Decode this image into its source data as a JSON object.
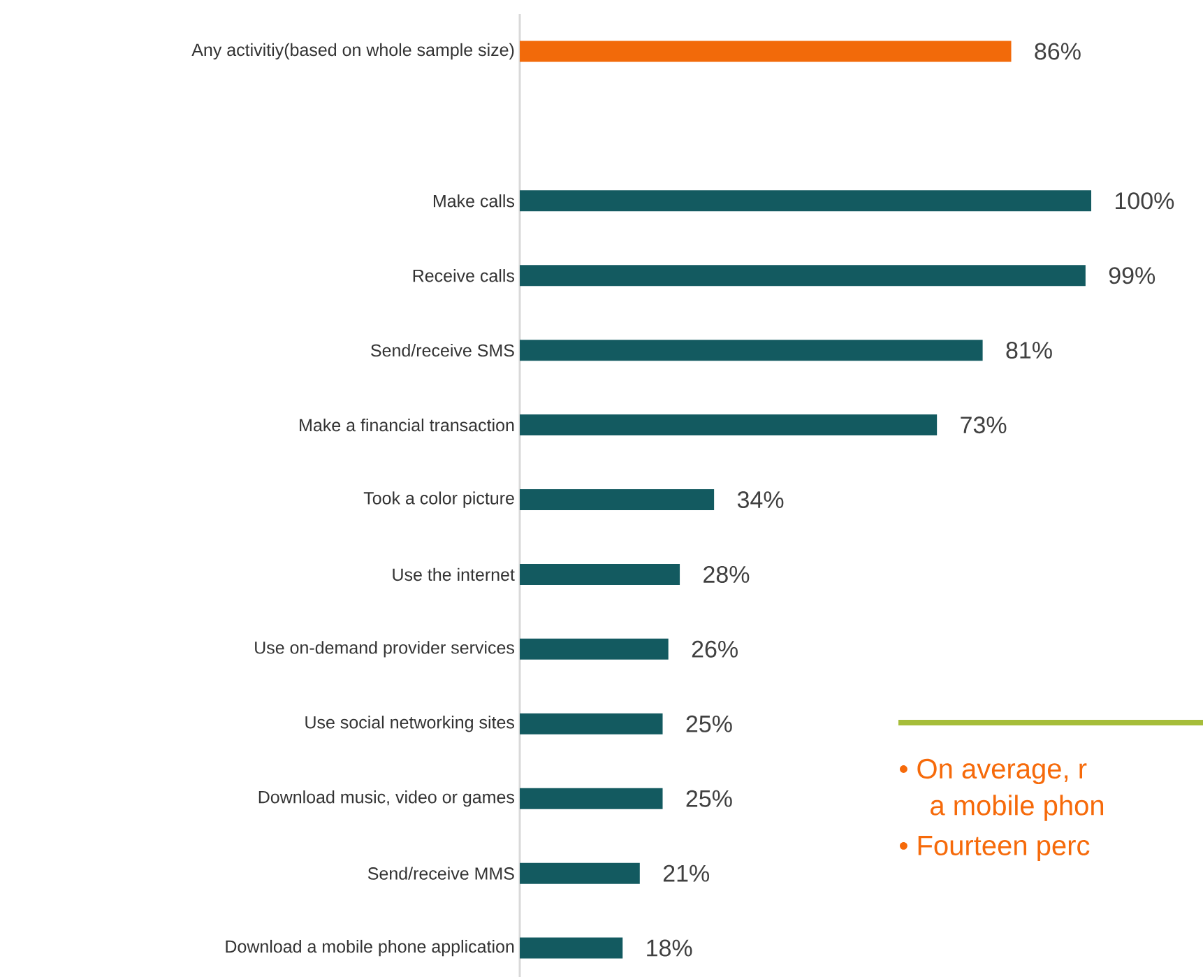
{
  "chart_data": {
    "type": "bar",
    "orientation": "horizontal",
    "categories": [
      "Any activitiy(based on whole sample size)",
      null,
      "Make calls",
      "Receive calls",
      "Send/receive SMS",
      "Make a financial transaction",
      "Took a color picture",
      "Use the internet",
      "Use on-demand provider services",
      "Use social networking sites",
      "Download music, video or games",
      "Send/receive MMS",
      "Download a mobile phone application"
    ],
    "values": [
      86,
      null,
      100,
      99,
      81,
      73,
      34,
      28,
      26,
      25,
      25,
      21,
      18
    ],
    "colors": [
      "#f26a0a",
      null,
      "#135a60",
      "#135a60",
      "#135a60",
      "#135a60",
      "#135a60",
      "#135a60",
      "#135a60",
      "#135a60",
      "#135a60",
      "#135a60",
      "#135a60"
    ],
    "value_labels": [
      "86%",
      null,
      "100%",
      "99%",
      "81%",
      "73%",
      "34%",
      "28%",
      "26%",
      "25%",
      "25%",
      "21%",
      "18%"
    ],
    "annotations": [
      "• On average, r",
      "a mobile phon",
      "• Fourteen perc"
    ]
  }
}
